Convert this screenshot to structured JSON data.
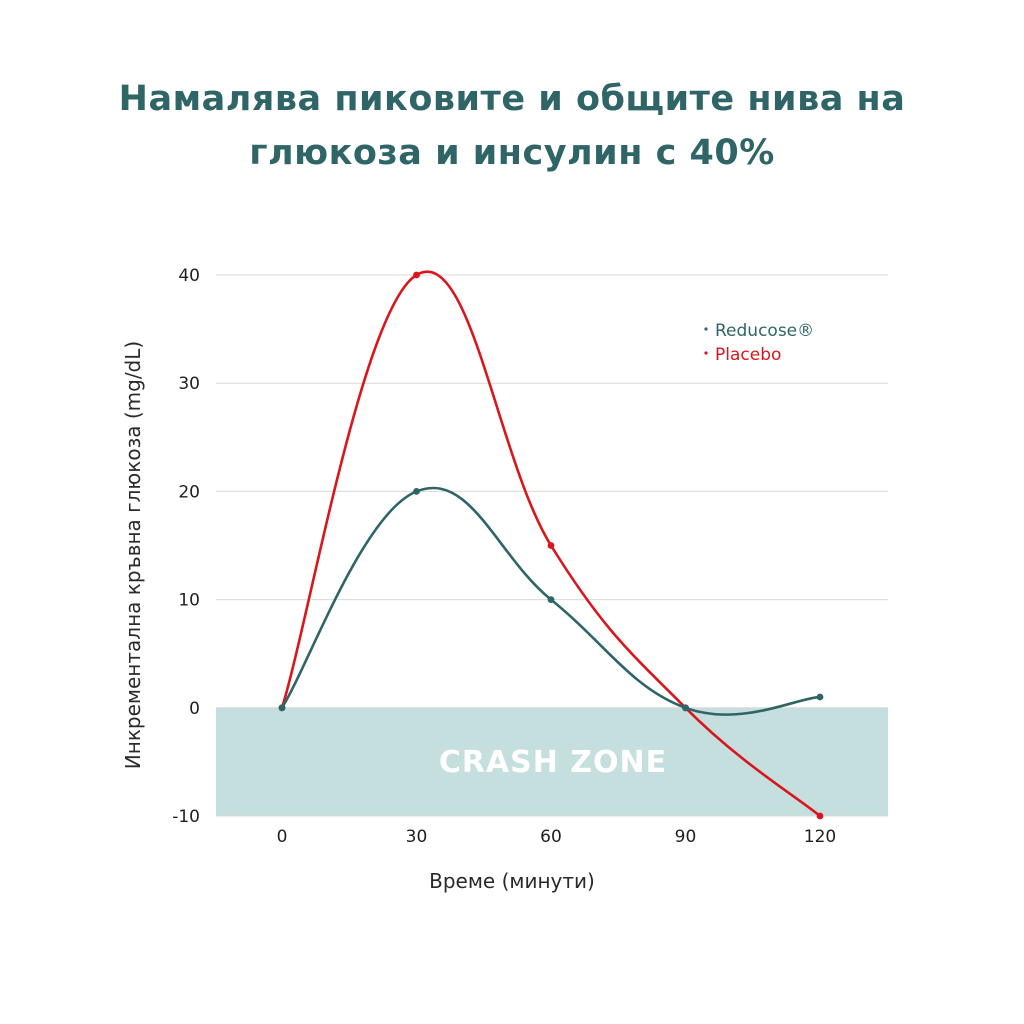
{
  "title": {
    "line1": "Намалява пиковите и общите нива на",
    "line2": "глюкоза и инсулин с 40%"
  },
  "colors": {
    "title": "#2f6566",
    "reducose": "#2f6566",
    "placebo": "#d9161c",
    "zone": "#c5dfdf",
    "grid": "#d9d9d9"
  },
  "chart_data": {
    "type": "line",
    "x": [
      0,
      30,
      60,
      90,
      120
    ],
    "xlabel": "Време (минути)",
    "ylabel": "Инкрементална кръвна глюкоза (mg/dL)",
    "ylim": [
      -10,
      40
    ],
    "yticks": [
      -10,
      0,
      10,
      20,
      30,
      40
    ],
    "xticks": [
      "0",
      "30",
      "60",
      "90",
      "120"
    ],
    "grid": true,
    "legend_position": "top-right",
    "series": [
      {
        "name": "Reducose®",
        "values": [
          0,
          20,
          10,
          0,
          1
        ]
      },
      {
        "name": "Placebo",
        "values": [
          0,
          40,
          15,
          0,
          -10
        ]
      }
    ],
    "shaded_region": {
      "label": "CRASH ZONE",
      "from": -10,
      "to": 0
    }
  }
}
